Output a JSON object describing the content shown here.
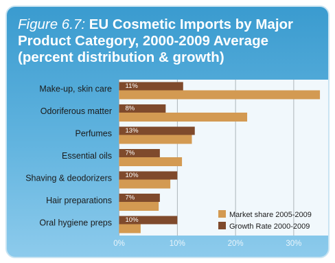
{
  "figure_label": "Figure 6.7",
  "figure_sep": ": ",
  "title": "EU Cosmetic Imports by Major Product Category, 2000-2009 Average (percent distribution & growth)",
  "colors": {
    "market_share": "#d39a52",
    "growth_rate": "#7f4a2c",
    "plot_bg": "#f1f8fc",
    "grid": "#9aa3a8"
  },
  "chart_data": {
    "type": "bar",
    "orientation": "horizontal",
    "title": "EU Cosmetic Imports by Major Product Category, 2000-2009 Average (percent distribution & growth)",
    "categories": [
      "Make-up, skin care",
      "Odoriferous matter",
      "Perfumes",
      "Essential oils",
      "Shaving & deodorizers",
      "Hair preparations",
      "Oral hygiene preps"
    ],
    "series": [
      {
        "name": "Growth Rate 2000-2009",
        "values": [
          11,
          8,
          13,
          7,
          10,
          7,
          10
        ],
        "labels": [
          "11%",
          "8%",
          "13%",
          "7%",
          "10%",
          "7%",
          "10%"
        ]
      },
      {
        "name": "Market share 2005-2009",
        "values": [
          34.5,
          22,
          12.5,
          10.8,
          8.8,
          6.8,
          3.7
        ]
      }
    ],
    "xlim": [
      0,
      35
    ],
    "xticks": [
      "0%",
      "10%",
      "20%",
      "30%"
    ],
    "xlabel": "",
    "ylabel": "",
    "grid": true,
    "legend_position": "bottom-right",
    "legend": [
      "Market share 2005-2009",
      "Growth Rate 2000-2009"
    ]
  }
}
